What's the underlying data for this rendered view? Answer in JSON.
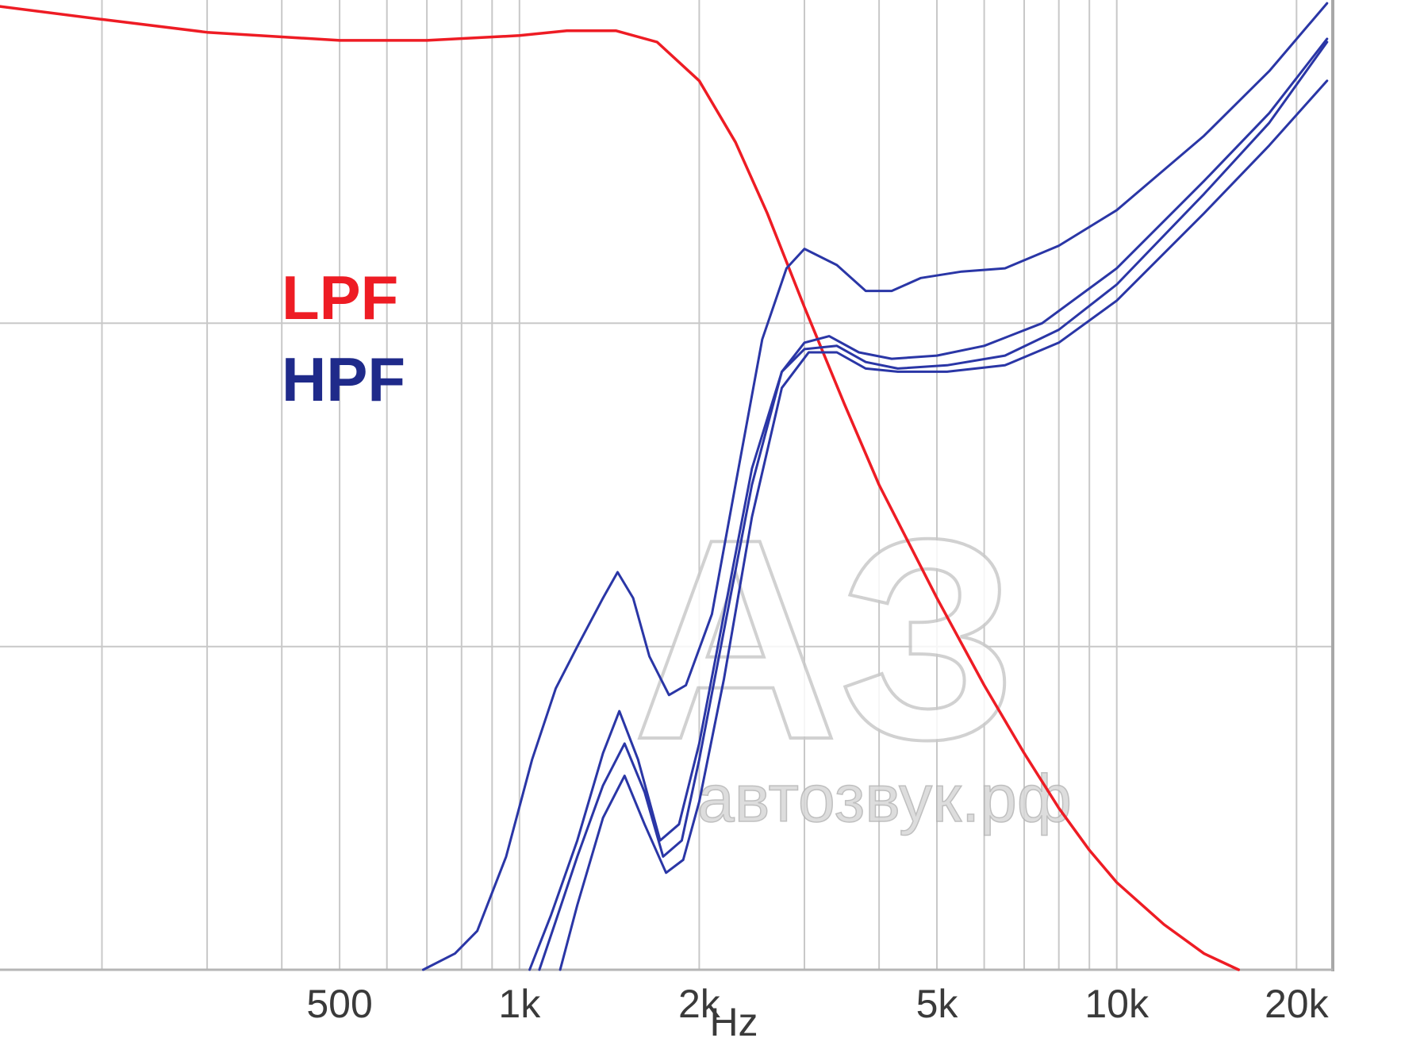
{
  "chart_data": {
    "type": "line",
    "title": "",
    "xlabel": "Hz",
    "ylabel": "",
    "x_scale": "log",
    "xlim": [
      135,
      23000
    ],
    "ylim": [
      -30,
      0
    ],
    "x_ticks": [
      {
        "value": 500,
        "label": "500"
      },
      {
        "value": 1000,
        "label": "1k"
      },
      {
        "value": 2000,
        "label": "2k"
      },
      {
        "value": 5000,
        "label": "5k"
      },
      {
        "value": 10000,
        "label": "10k"
      },
      {
        "value": 20000,
        "label": "20k"
      }
    ],
    "x_gridlines": [
      200,
      300,
      400,
      500,
      600,
      700,
      800,
      900,
      1000,
      2000,
      3000,
      4000,
      5000,
      6000,
      7000,
      8000,
      9000,
      10000,
      20000
    ],
    "y_gridlines": [
      -10,
      -20
    ],
    "grid": true,
    "legend": [
      {
        "label": "LPF",
        "color": "#ee1c24"
      },
      {
        "label": "HPF",
        "color": "#1f2a8a"
      }
    ],
    "legend_position": "middle-left",
    "colors": {
      "lpf": "#ee1c24",
      "hpf": "#2a36a6",
      "grid": "#c8c8c8"
    },
    "series": [
      {
        "name": "LPF",
        "color": "#ee1c24",
        "points": [
          [
            135,
            -0.2
          ],
          [
            200,
            -0.6
          ],
          [
            300,
            -1.0
          ],
          [
            500,
            -1.25
          ],
          [
            700,
            -1.25
          ],
          [
            1000,
            -1.1
          ],
          [
            1200,
            -0.95
          ],
          [
            1450,
            -0.95
          ],
          [
            1700,
            -1.3
          ],
          [
            2000,
            -2.5
          ],
          [
            2300,
            -4.4
          ],
          [
            2600,
            -6.6
          ],
          [
            3000,
            -9.5
          ],
          [
            3500,
            -12.5
          ],
          [
            4000,
            -15.0
          ],
          [
            5000,
            -18.5
          ],
          [
            6000,
            -21.2
          ],
          [
            7000,
            -23.3
          ],
          [
            8000,
            -25.0
          ],
          [
            9000,
            -26.3
          ],
          [
            10000,
            -27.3
          ],
          [
            12000,
            -28.6
          ],
          [
            14000,
            -29.5
          ],
          [
            16000,
            -30.0
          ]
        ]
      },
      {
        "name": "",
        "color": "#2a36a6",
        "points": [
          [
            690,
            -30
          ],
          [
            780,
            -29.5
          ],
          [
            850,
            -28.8
          ],
          [
            950,
            -26.5
          ],
          [
            1050,
            -23.5
          ],
          [
            1150,
            -21.3
          ],
          [
            1250,
            -20.0
          ],
          [
            1380,
            -18.5
          ],
          [
            1460,
            -17.7
          ],
          [
            1550,
            -18.5
          ],
          [
            1650,
            -20.3
          ],
          [
            1780,
            -21.5
          ],
          [
            1900,
            -21.2
          ],
          [
            2100,
            -19.0
          ],
          [
            2300,
            -15.0
          ],
          [
            2550,
            -10.5
          ],
          [
            2800,
            -8.3
          ],
          [
            3000,
            -7.7
          ],
          [
            3400,
            -8.2
          ],
          [
            3800,
            -9.0
          ],
          [
            4200,
            -9.0
          ],
          [
            4700,
            -8.6
          ],
          [
            5500,
            -8.4
          ],
          [
            6500,
            -8.3
          ],
          [
            8000,
            -7.6
          ],
          [
            10000,
            -6.5
          ],
          [
            14000,
            -4.2
          ],
          [
            18000,
            -2.2
          ],
          [
            22500,
            -0.1
          ]
        ]
      },
      {
        "name": "",
        "color": "#2a36a6",
        "points": [
          [
            1080,
            -30
          ],
          [
            1150,
            -28.5
          ],
          [
            1250,
            -26.5
          ],
          [
            1380,
            -24.3
          ],
          [
            1500,
            -23.0
          ],
          [
            1620,
            -24.5
          ],
          [
            1740,
            -26.5
          ],
          [
            1870,
            -26.0
          ],
          [
            2000,
            -23.5
          ],
          [
            2200,
            -19.5
          ],
          [
            2450,
            -15.0
          ],
          [
            2750,
            -11.5
          ],
          [
            3000,
            -10.6
          ],
          [
            3300,
            -10.4
          ],
          [
            3700,
            -10.9
          ],
          [
            4200,
            -11.1
          ],
          [
            5000,
            -11.0
          ],
          [
            6000,
            -10.7
          ],
          [
            7500,
            -10.0
          ],
          [
            10000,
            -8.3
          ],
          [
            14000,
            -5.6
          ],
          [
            18000,
            -3.5
          ],
          [
            22500,
            -1.2
          ]
        ]
      },
      {
        "name": "",
        "color": "#2a36a6",
        "points": [
          [
            1040,
            -30
          ],
          [
            1130,
            -28.3
          ],
          [
            1250,
            -26.0
          ],
          [
            1380,
            -23.3
          ],
          [
            1470,
            -22.0
          ],
          [
            1580,
            -23.5
          ],
          [
            1720,
            -26.0
          ],
          [
            1850,
            -25.5
          ],
          [
            2000,
            -23.0
          ],
          [
            2200,
            -19.0
          ],
          [
            2450,
            -14.5
          ],
          [
            2750,
            -11.5
          ],
          [
            3000,
            -10.8
          ],
          [
            3400,
            -10.7
          ],
          [
            3800,
            -11.2
          ],
          [
            4300,
            -11.4
          ],
          [
            5200,
            -11.3
          ],
          [
            6500,
            -11.0
          ],
          [
            8000,
            -10.2
          ],
          [
            10000,
            -8.8
          ],
          [
            14000,
            -6.0
          ],
          [
            18000,
            -3.8
          ],
          [
            22500,
            -1.3
          ]
        ]
      },
      {
        "name": "",
        "color": "#2a36a6",
        "points": [
          [
            1170,
            -30
          ],
          [
            1250,
            -28.0
          ],
          [
            1380,
            -25.3
          ],
          [
            1500,
            -24.0
          ],
          [
            1620,
            -25.5
          ],
          [
            1760,
            -27.0
          ],
          [
            1880,
            -26.6
          ],
          [
            2000,
            -24.8
          ],
          [
            2200,
            -21.0
          ],
          [
            2450,
            -16.0
          ],
          [
            2750,
            -12.0
          ],
          [
            3050,
            -10.9
          ],
          [
            3400,
            -10.9
          ],
          [
            3800,
            -11.4
          ],
          [
            4300,
            -11.5
          ],
          [
            5200,
            -11.5
          ],
          [
            6500,
            -11.3
          ],
          [
            8000,
            -10.6
          ],
          [
            10000,
            -9.3
          ],
          [
            14000,
            -6.6
          ],
          [
            18000,
            -4.5
          ],
          [
            22500,
            -2.5
          ]
        ]
      }
    ]
  },
  "watermark": {
    "logo_text": "АЗ",
    "site_text": "автозвук.рф"
  }
}
